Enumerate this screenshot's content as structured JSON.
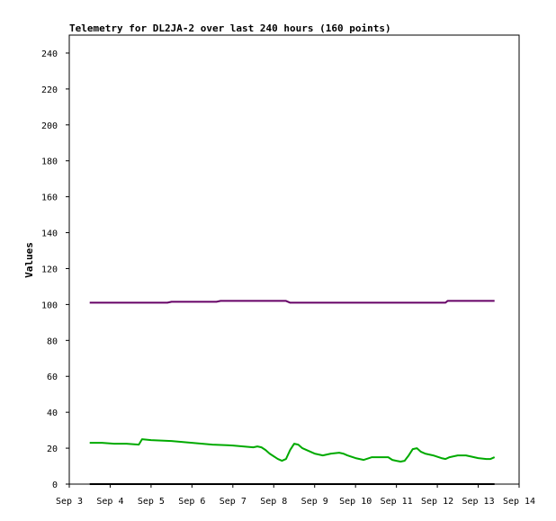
{
  "chart_data": {
    "type": "line",
    "title": "Telemetry for DL2JA-2 over last 240 hours (160 points)",
    "xlabel": "",
    "ylabel": "Values",
    "ylim": [
      0,
      250
    ],
    "xlim": [
      3,
      14
    ],
    "x_tick_labels": [
      "Sep 3",
      "Sep 4",
      "Sep 5",
      "Sep 6",
      "Sep 7",
      "Sep 8",
      "Sep 9",
      "Sep 10",
      "Sep 11",
      "Sep 12",
      "Sep 13",
      "Sep 14"
    ],
    "x_tick_values": [
      3,
      4,
      5,
      6,
      7,
      8,
      9,
      10,
      11,
      12,
      13,
      14
    ],
    "y_tick_values": [
      0,
      20,
      40,
      60,
      80,
      100,
      120,
      140,
      160,
      180,
      200,
      220,
      240
    ],
    "grid": false,
    "series": [
      {
        "color": "#660066",
        "x": [
          3.5,
          4.0,
          4.5,
          5.0,
          5.4,
          5.5,
          6.0,
          6.6,
          6.7,
          7.0,
          7.5,
          8.0,
          8.3,
          8.4,
          9.0,
          9.5,
          10.0,
          10.5,
          11.0,
          11.5,
          12.0,
          12.2,
          12.25,
          12.5,
          13.0,
          13.4
        ],
        "y": [
          101,
          101,
          101,
          101,
          101,
          101.5,
          101.5,
          101.5,
          102,
          102,
          102,
          102,
          102,
          101,
          101,
          101,
          101,
          101,
          101,
          101,
          101,
          101,
          102,
          102,
          102,
          102
        ]
      },
      {
        "color": "#00aa00",
        "x": [
          3.5,
          3.8,
          4.1,
          4.4,
          4.7,
          4.78,
          5.0,
          5.5,
          6.0,
          6.5,
          7.0,
          7.5,
          7.6,
          7.7,
          7.8,
          7.9,
          8.0,
          8.1,
          8.2,
          8.3,
          8.4,
          8.5,
          8.6,
          8.7,
          8.8,
          9.0,
          9.2,
          9.4,
          9.6,
          9.7,
          9.8,
          10.0,
          10.2,
          10.4,
          10.6,
          10.8,
          10.9,
          11.0,
          11.1,
          11.2,
          11.3,
          11.4,
          11.5,
          11.6,
          11.7,
          11.9,
          12.1,
          12.2,
          12.3,
          12.5,
          12.7,
          12.8,
          13.0,
          13.2,
          13.3,
          13.4
        ],
        "y": [
          23,
          23,
          22.5,
          22.5,
          22,
          25,
          24.5,
          24,
          23,
          22,
          21.5,
          20.5,
          21,
          20.5,
          19,
          17,
          15.5,
          14,
          13,
          14,
          19,
          22.5,
          22,
          20,
          19,
          17,
          16,
          17,
          17.5,
          17,
          16,
          14.5,
          13.5,
          15,
          15,
          15,
          13.5,
          13,
          12.5,
          13,
          16,
          19.5,
          20,
          18,
          17,
          16,
          14.5,
          14,
          15,
          16,
          16,
          15.5,
          14.5,
          14,
          14,
          15
        ]
      },
      {
        "color": "#000000",
        "x": [
          3.5,
          13.4
        ],
        "y": [
          0,
          0
        ]
      }
    ]
  }
}
